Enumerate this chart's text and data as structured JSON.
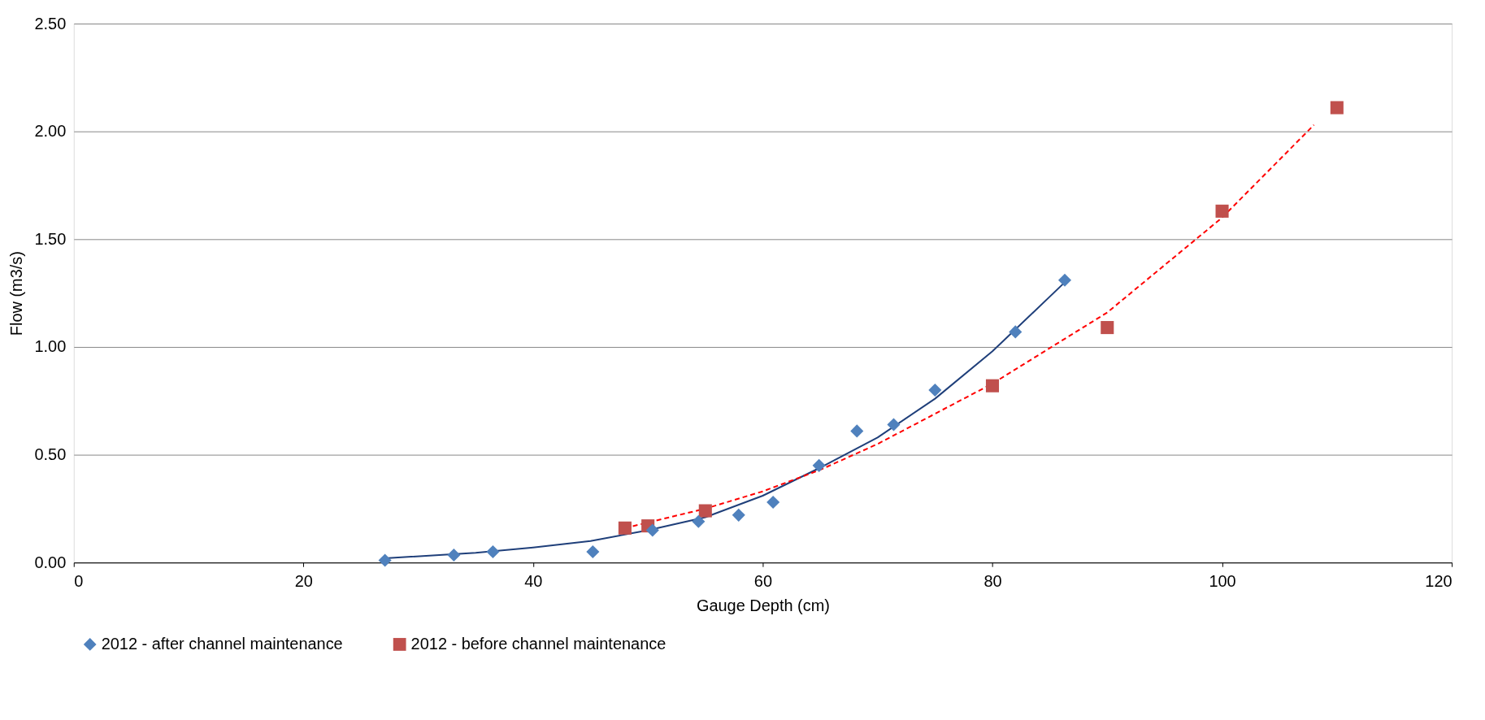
{
  "chart_data": {
    "type": "scatter",
    "xlabel": "Gauge Depth (cm)",
    "ylabel": "Flow (m3/s)",
    "xlim": [
      0,
      120
    ],
    "xticks": [
      0,
      20,
      40,
      60,
      80,
      100,
      120
    ],
    "ylim": [
      0,
      2.5
    ],
    "yticks": [
      {
        "value": 0,
        "label": "0.00"
      },
      {
        "value": 0.5,
        "label": "0.50"
      },
      {
        "value": 1,
        "label": "1.00"
      },
      {
        "value": 1.5,
        "label": "1.50"
      },
      {
        "value": 2,
        "label": "2.00"
      },
      {
        "value": 2.5,
        "label": "2.50"
      }
    ],
    "grid": "y",
    "legend": "bottom",
    "series": [
      {
        "name": "2012 - after channel maintenance",
        "color": "#4f81bd",
        "marker": "diamond",
        "x": [
          27.1,
          33.1,
          36.5,
          45.2,
          50.4,
          54.4,
          57.9,
          60.9,
          64.9,
          68.2,
          71.4,
          75.0,
          82.0,
          86.3
        ],
        "values": [
          0.01,
          0.035,
          0.05,
          0.05,
          0.15,
          0.19,
          0.22,
          0.28,
          0.45,
          0.61,
          0.64,
          0.8,
          1.07,
          1.31
        ]
      },
      {
        "name": "2012 - before channel maintenance",
        "color": "#c0504d",
        "marker": "square",
        "x": [
          48,
          50,
          55,
          80,
          90,
          100,
          110
        ],
        "values": [
          0.16,
          0.17,
          0.24,
          0.82,
          1.09,
          1.63,
          2.11
        ]
      },
      {
        "color": "#1f3f7a",
        "type": "line",
        "line_style": "solid",
        "x": [
          27.1,
          35,
          40,
          45,
          50,
          55,
          60,
          65,
          70,
          75,
          80,
          86.3
        ],
        "values": [
          0.02,
          0.045,
          0.07,
          0.1,
          0.15,
          0.21,
          0.31,
          0.44,
          0.58,
          0.76,
          0.98,
          1.3
        ]
      },
      {
        "color": "#ff0000",
        "type": "line",
        "line_style": "dashed",
        "x": [
          48,
          55,
          60,
          65,
          70,
          80,
          90,
          100,
          108
        ],
        "values": [
          0.16,
          0.25,
          0.33,
          0.43,
          0.55,
          0.83,
          1.16,
          1.6,
          2.03
        ]
      }
    ]
  }
}
